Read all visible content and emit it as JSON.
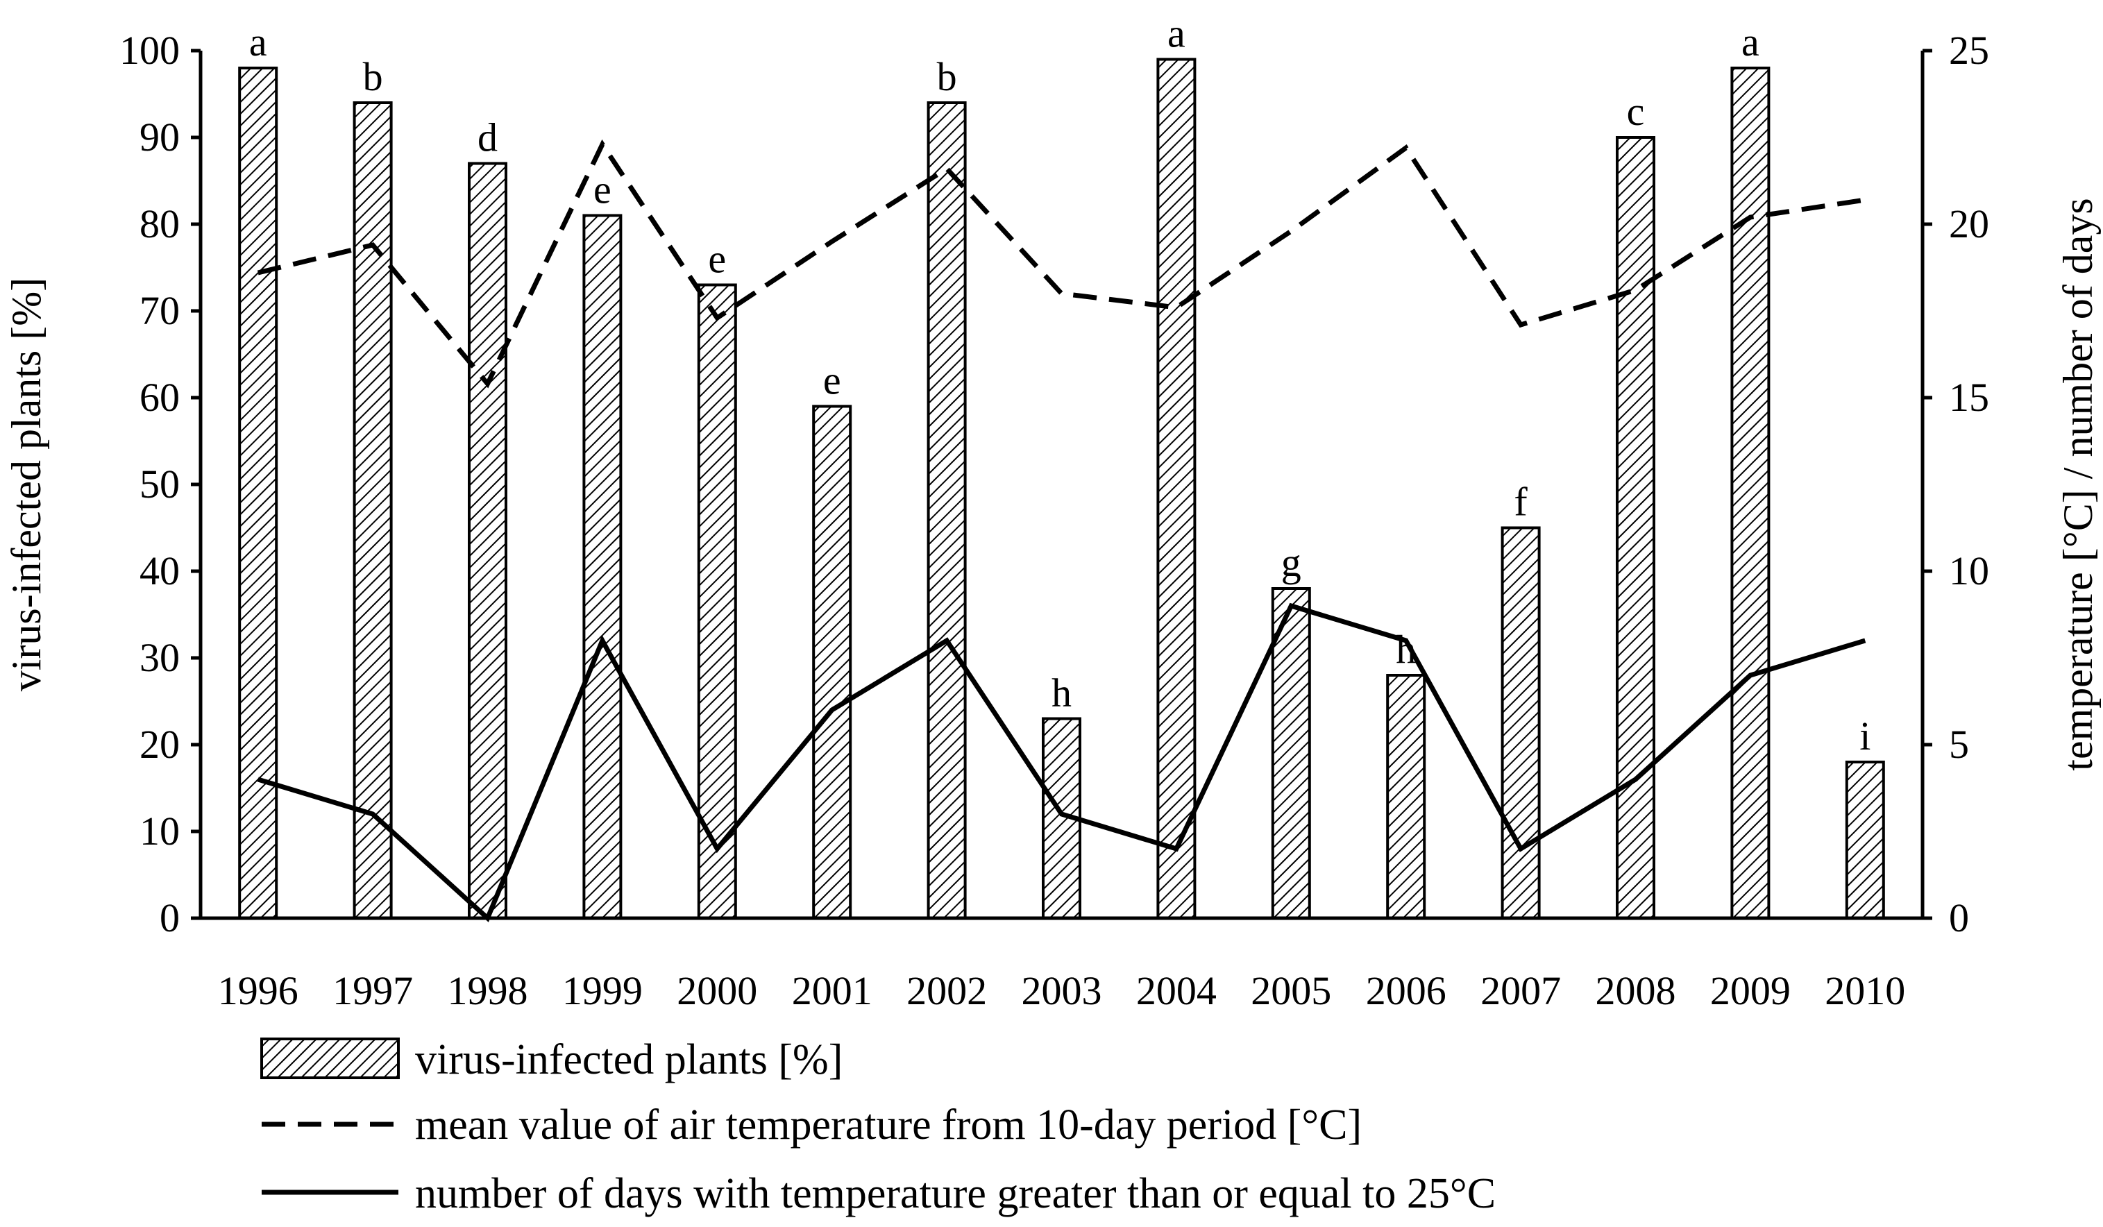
{
  "chart_data": {
    "type": "bar",
    "categories": [
      "1996",
      "1997",
      "1998",
      "1999",
      "2000",
      "2001",
      "2002",
      "2003",
      "2004",
      "2005",
      "2006",
      "2007",
      "2008",
      "2009",
      "2010"
    ],
    "series": [
      {
        "name": "virus-infected plants  [%]",
        "kind": "bar",
        "axis": "left",
        "values": [
          98,
          94,
          87,
          81,
          73,
          59,
          94,
          23,
          99,
          38,
          28,
          45,
          90,
          98,
          18
        ],
        "labels": [
          "a",
          "b",
          "d",
          "e",
          "e",
          "e",
          "b",
          "h",
          "a",
          "g",
          "h",
          "f",
          "c",
          "a",
          "i"
        ]
      },
      {
        "name": "mean value of air temperature from 10-day period [°C]",
        "kind": "line",
        "style": "dashed",
        "axis": "right",
        "values": [
          18.6,
          19.4,
          15.4,
          22.3,
          17.3,
          19.5,
          21.6,
          18.0,
          17.6,
          19.8,
          22.2,
          17.1,
          18.1,
          20.2,
          20.7
        ]
      },
      {
        "name": "number of days with temperature greater than or equal to 25°C",
        "kind": "line",
        "style": "solid",
        "axis": "right",
        "values": [
          4,
          3,
          0,
          8,
          2,
          6,
          8,
          3,
          2,
          9,
          8,
          2,
          4,
          7,
          8
        ]
      }
    ],
    "ylabel": "virus-infected plants [%]",
    "y2label": "temperature [°C] / number of days",
    "xlabel": "",
    "title": "",
    "ylim": [
      0,
      100
    ],
    "y2lim": [
      0,
      25
    ],
    "yticks": [
      "0",
      "10",
      "20",
      "30",
      "40",
      "50",
      "60",
      "70",
      "80",
      "90",
      "100"
    ],
    "y2ticks": [
      "0",
      "5",
      "10",
      "15",
      "20",
      "25"
    ],
    "grid": false,
    "legend_position": "bottom"
  }
}
